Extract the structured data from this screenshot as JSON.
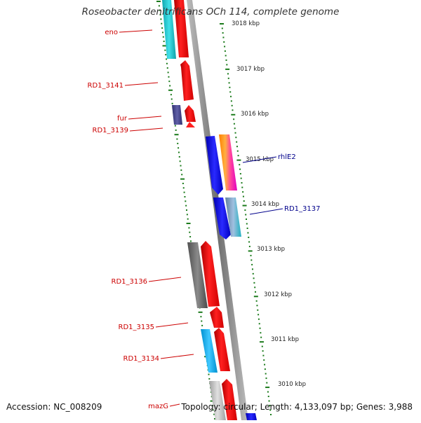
{
  "title": "Roseobacter denitrificans OCh 114, complete genome",
  "accession_text": "Accession: NC_008209",
  "summary_text": "Topology: circular; Length: 4,133,097 bp; Genes: 3,988",
  "colors": {
    "backbone": "#888888",
    "tick": "#1a7a1a",
    "forward_label": "#cc0000",
    "reverse_label": "#00008b",
    "red_gene": "#ff1010",
    "cyan_gene": "#20c8d0",
    "gray_gene": "#707070",
    "blue_gene": "#1010e0",
    "purple_gene": "#505090",
    "sky_gene": "#10b0f0"
  },
  "scale_labels": [
    "3018 kbp",
    "3017 kbp",
    "3016 kbp",
    "3015 kbp",
    "3014 kbp",
    "3013 kbp",
    "3012 kbp",
    "3011 kbp",
    "3010 kbp"
  ],
  "forward_gene_labels": [
    "eno",
    "RD1_3141",
    "fur",
    "RD1_3139",
    "RD1_3136",
    "RD1_3135",
    "RD1_3134",
    "mazG"
  ],
  "reverse_gene_labels": [
    "rhlE2",
    "RD1_3137"
  ]
}
